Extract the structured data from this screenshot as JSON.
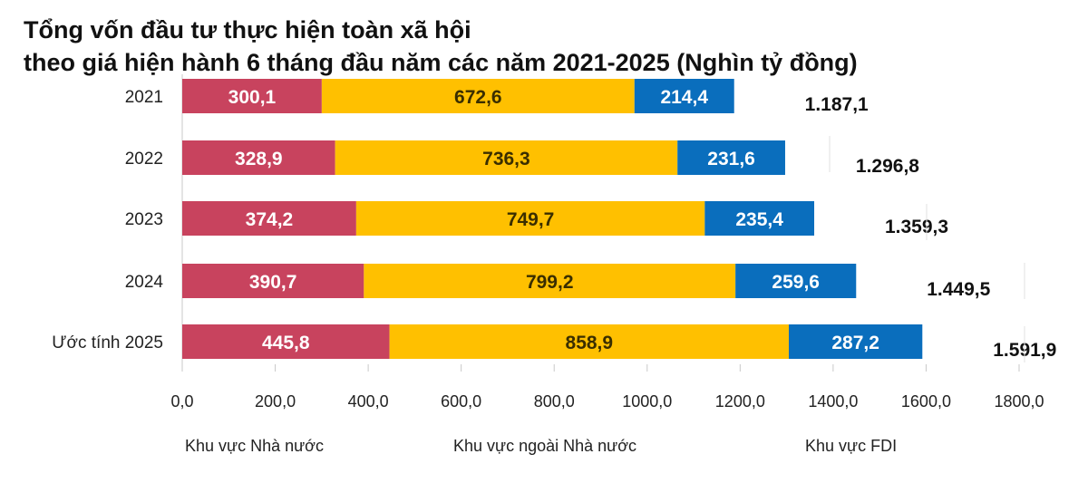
{
  "chart_data": {
    "type": "bar",
    "orientation": "horizontal",
    "stacked": true,
    "title_line1": "Tổng vốn đầu tư thực hiện toàn xã hội",
    "title_line2": "theo giá hiện hành 6 tháng đầu năm các năm 2021-2025 (Nghìn tỷ đồng)",
    "categories": [
      "2021",
      "2022",
      "2023",
      "2024",
      "Ước tính 2025"
    ],
    "series": [
      {
        "name": "Khu vực Nhà nước",
        "color": "#C8435E",
        "label_color": "#ffffff",
        "values": [
          300.1,
          328.9,
          374.2,
          390.7,
          445.8
        ],
        "labels": [
          "300,1",
          "328,9",
          "374,2",
          "390,7",
          "445,8"
        ]
      },
      {
        "name": "Khu vực ngoài Nhà nước",
        "color": "#FFC000",
        "label_color": "#3a2e00",
        "values": [
          672.6,
          736.3,
          749.7,
          799.2,
          858.9
        ],
        "labels": [
          "672,6",
          "736,3",
          "749,7",
          "799,2",
          "858,9"
        ]
      },
      {
        "name": "Khu vực FDI",
        "color": "#0A6EBD",
        "label_color": "#ffffff",
        "values": [
          214.4,
          231.6,
          235.4,
          259.6,
          287.2
        ],
        "labels": [
          "214,4",
          "231,6",
          "235,4",
          "259,6",
          "287,2"
        ]
      }
    ],
    "totals": [
      1187.1,
      1296.8,
      1359.3,
      1449.5,
      1591.9
    ],
    "total_labels": [
      "1.187,1",
      "1.296,8",
      "1.359,3",
      "1.449,5",
      "1.591,9"
    ],
    "xlim": [
      0,
      1800
    ],
    "xticks": [
      0,
      200,
      400,
      600,
      800,
      1000,
      1200,
      1400,
      1600,
      1800
    ],
    "xtick_labels": [
      "0,0",
      "200,0",
      "400,0",
      "600,0",
      "800,0",
      "1000,0",
      "1200,0",
      "1400,0",
      "1600,0",
      "1800,0"
    ],
    "legend_position": "bottom",
    "gridlines": false
  }
}
